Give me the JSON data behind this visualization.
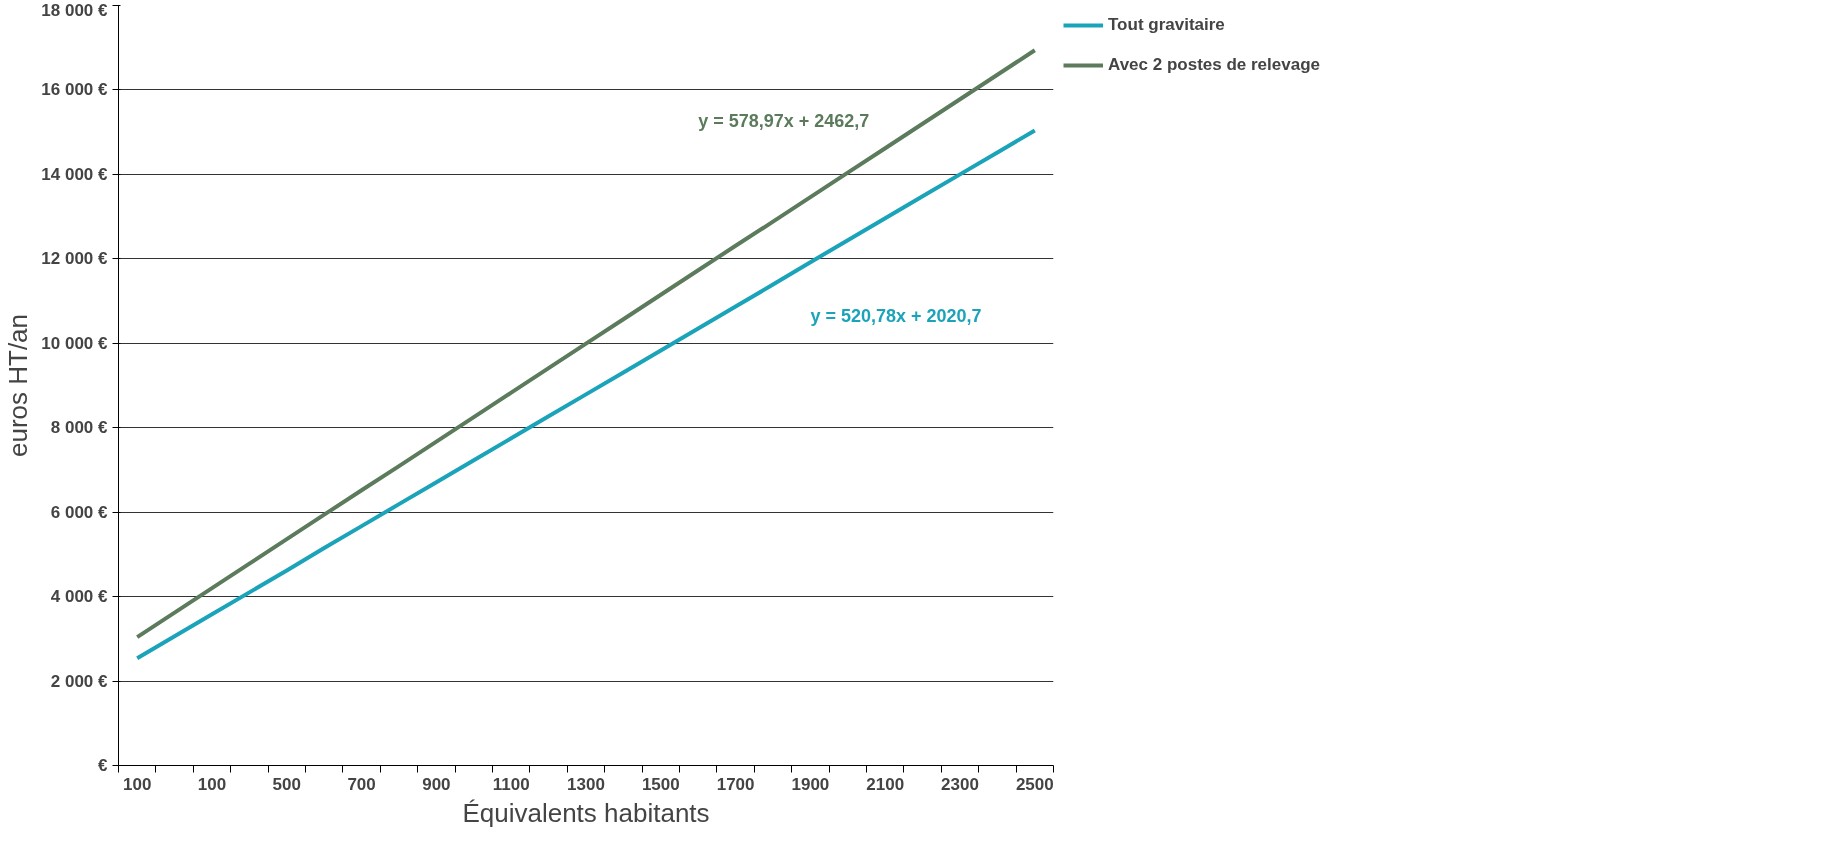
{
  "chart_data": {
    "type": "line",
    "xlabel": "Équivalents habitants",
    "ylabel": "euros HT/an",
    "categories": [
      "100",
      null,
      "100",
      null,
      "500",
      null,
      "700",
      null,
      "900",
      null,
      "1100",
      null,
      "1300",
      null,
      "1500",
      null,
      "1700",
      null,
      "1900",
      null,
      "2100",
      null,
      "2300",
      null,
      "2500"
    ],
    "series": [
      {
        "name": "Tout gravitaire",
        "color": "#1ba3b9",
        "values": [
          2540,
          3060,
          3580,
          4100,
          4620,
          5150,
          5670,
          6190,
          6710,
          7230,
          7750,
          8270,
          8790,
          9310,
          9830,
          10350,
          10870,
          11390,
          11920,
          12440,
          12960,
          13480,
          14000,
          14520,
          15040
        ]
      },
      {
        "name": "Avec 2 postes de relevage",
        "color": "#5b7b5c",
        "values": [
          3040,
          3620,
          4200,
          4780,
          5360,
          5940,
          6520,
          7090,
          7670,
          8250,
          8830,
          9410,
          9990,
          10570,
          11150,
          11730,
          12310,
          12880,
          13460,
          14040,
          14620,
          15200,
          15780,
          16360,
          16940
        ]
      }
    ],
    "ylim": [
      0,
      18000
    ],
    "yticks": [
      {
        "value": 0,
        "label": "€"
      },
      {
        "value": 2000,
        "label": "2 000 €"
      },
      {
        "value": 4000,
        "label": "4 000 €"
      },
      {
        "value": 6000,
        "label": "6 000 €"
      },
      {
        "value": 8000,
        "label": "8 000 €"
      },
      {
        "value": 10000,
        "label": "10 000 €"
      },
      {
        "value": 12000,
        "label": "12 000 €"
      },
      {
        "value": 14000,
        "label": "14 000 €"
      },
      {
        "value": 16000,
        "label": "16 000 €"
      },
      {
        "value": 18000,
        "label": "18 000 €"
      }
    ],
    "annotations": [
      "y = 520,78x + 2020,7",
      "y = 578,97x + 2462,7"
    ],
    "grid": "y",
    "legend": "top right",
    "marker": "none",
    "line_style": "solid"
  }
}
